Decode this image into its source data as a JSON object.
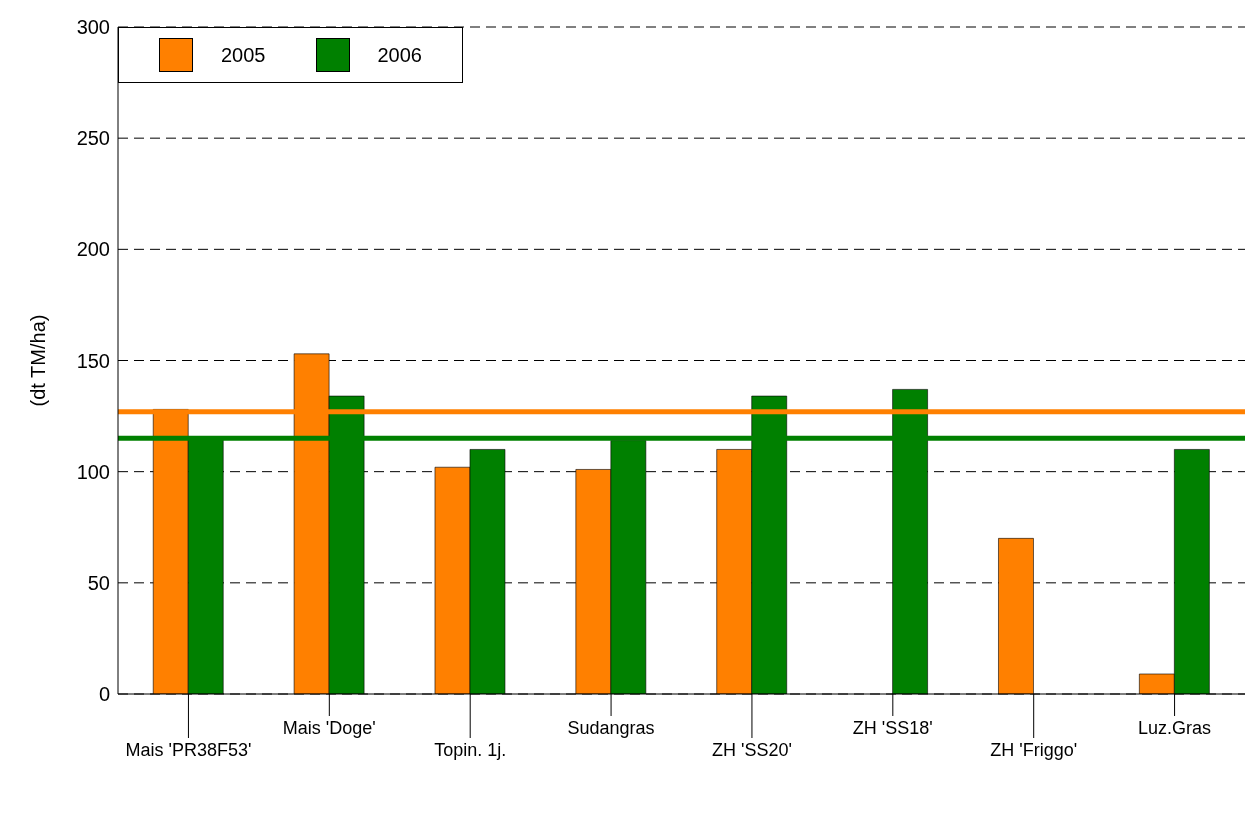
{
  "chart_data": {
    "type": "bar",
    "ylabel": "(dt TM/ha)",
    "categories": [
      "Mais 'PR38F53'",
      "Mais 'Doge'",
      "Topin. 1j.",
      "Sudangras",
      "ZH 'SS20'",
      "ZH 'SS18'",
      "ZH 'Friggo'",
      "Luz.Gras"
    ],
    "series": [
      {
        "name": "2005",
        "color": "#ff8000",
        "values": [
          128,
          153,
          102,
          101,
          110,
          null,
          70,
          9
        ]
      },
      {
        "name": "2006",
        "color": "#008000",
        "values": [
          115,
          134,
          110,
          114,
          134,
          137,
          null,
          110
        ]
      }
    ],
    "ylim": [
      0,
      300
    ],
    "yticks": [
      0,
      50,
      100,
      150,
      200,
      250,
      300
    ],
    "grid": "y",
    "legend": "top left",
    "ref_lines": [
      {
        "axis": "y",
        "value": 127,
        "color": "#ff8000"
      },
      {
        "axis": "y",
        "value": 115,
        "color": "#008000"
      }
    ]
  }
}
